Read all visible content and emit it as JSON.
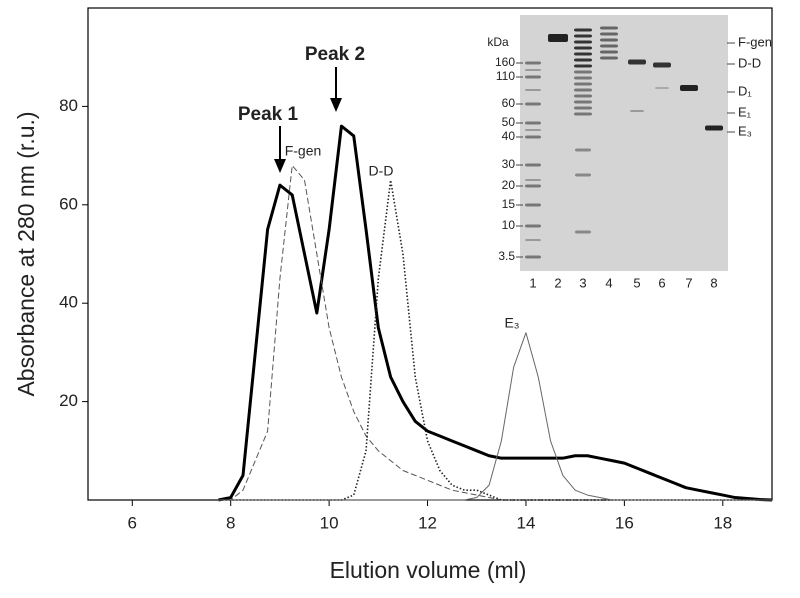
{
  "chart_data": {
    "type": "line",
    "xlabel": "Elution volume (ml)",
    "ylabel": "Absorbance at 280 nm (r.u.)",
    "x": [
      7.75,
      8.0,
      8.25,
      8.5,
      8.75,
      9.0,
      9.25,
      9.5,
      9.75,
      10.0,
      10.25,
      10.5,
      10.75,
      11.0,
      11.25,
      11.5,
      11.75,
      12.0,
      12.25,
      12.5,
      12.75,
      13.0,
      13.25,
      13.5,
      13.75,
      14.0,
      14.25,
      14.5,
      14.75,
      15.0,
      15.25,
      15.5,
      15.75,
      16.0,
      16.25,
      16.5,
      16.75,
      17.0,
      17.25,
      17.5,
      17.75,
      18.0,
      18.25,
      18.5,
      18.75,
      19.0
    ],
    "series": [
      {
        "color": "#000000",
        "style": "bold",
        "values": [
          0,
          0.5,
          5,
          30,
          55,
          64,
          62,
          50,
          38,
          55,
          76,
          74,
          55,
          35,
          25,
          20,
          16,
          14,
          13,
          12,
          11,
          10,
          9,
          8.5,
          8.5,
          8.5,
          8.5,
          8.5,
          8.5,
          9,
          9,
          8.5,
          8,
          7.5,
          6.5,
          5.5,
          4.5,
          3.5,
          2.5,
          2,
          1.5,
          1,
          0.5,
          0.3,
          0.1,
          0
        ]
      },
      {
        "color": "#555555",
        "style": "dashed",
        "values": [
          0,
          0,
          2,
          8,
          14,
          45,
          68,
          65,
          50,
          35,
          25,
          18,
          13,
          10,
          8,
          6,
          5,
          4,
          3,
          2,
          1.5,
          1,
          0.5,
          0,
          0,
          0,
          0,
          0,
          0,
          0,
          0,
          0,
          0,
          0,
          0,
          0,
          0,
          0,
          0,
          0,
          0,
          0,
          0,
          0,
          0,
          0
        ]
      },
      {
        "color": "#222222",
        "style": "dotted",
        "values": [
          0,
          0,
          0,
          0,
          0,
          0,
          0,
          0,
          0,
          0,
          0,
          1,
          10,
          45,
          65,
          50,
          25,
          12,
          6,
          3,
          2,
          2,
          1,
          0,
          0,
          0,
          0,
          0,
          0,
          0,
          0,
          0,
          0,
          0,
          0,
          0,
          0,
          0,
          0,
          0,
          0,
          0,
          0,
          0,
          0,
          0
        ]
      },
      {
        "color": "#666666",
        "style": "thin",
        "values": [
          0,
          0,
          0,
          0,
          0,
          0,
          0,
          0,
          0,
          0,
          0,
          0,
          0,
          0,
          0,
          0,
          0,
          0,
          0,
          0,
          0,
          0.5,
          3,
          12,
          27,
          34,
          25,
          12,
          5,
          2,
          1,
          0.5,
          0,
          0,
          0,
          0,
          0,
          0,
          0,
          0,
          0,
          0,
          0,
          0,
          0,
          0
        ]
      }
    ],
    "xlim": [
      5.1,
      19.0
    ],
    "ylim": [
      0,
      100
    ],
    "xticks": [
      6,
      8,
      10,
      12,
      14,
      16,
      18
    ],
    "yticks": [
      20,
      40,
      60,
      80
    ],
    "annotations": [
      "Peak 1",
      "Peak 2",
      "F-gen",
      "D-D",
      "E₃"
    ],
    "inset": {
      "unit": "kDa",
      "markers": [
        160,
        110,
        60,
        50,
        40,
        30,
        20,
        15,
        10,
        3.5
      ],
      "lanes": [
        "1",
        "2",
        "3",
        "4",
        "5",
        "6",
        "7",
        "8"
      ],
      "band_labels": [
        "F-gen",
        "D-D",
        "D₁",
        "E₁",
        "E₃"
      ]
    }
  }
}
